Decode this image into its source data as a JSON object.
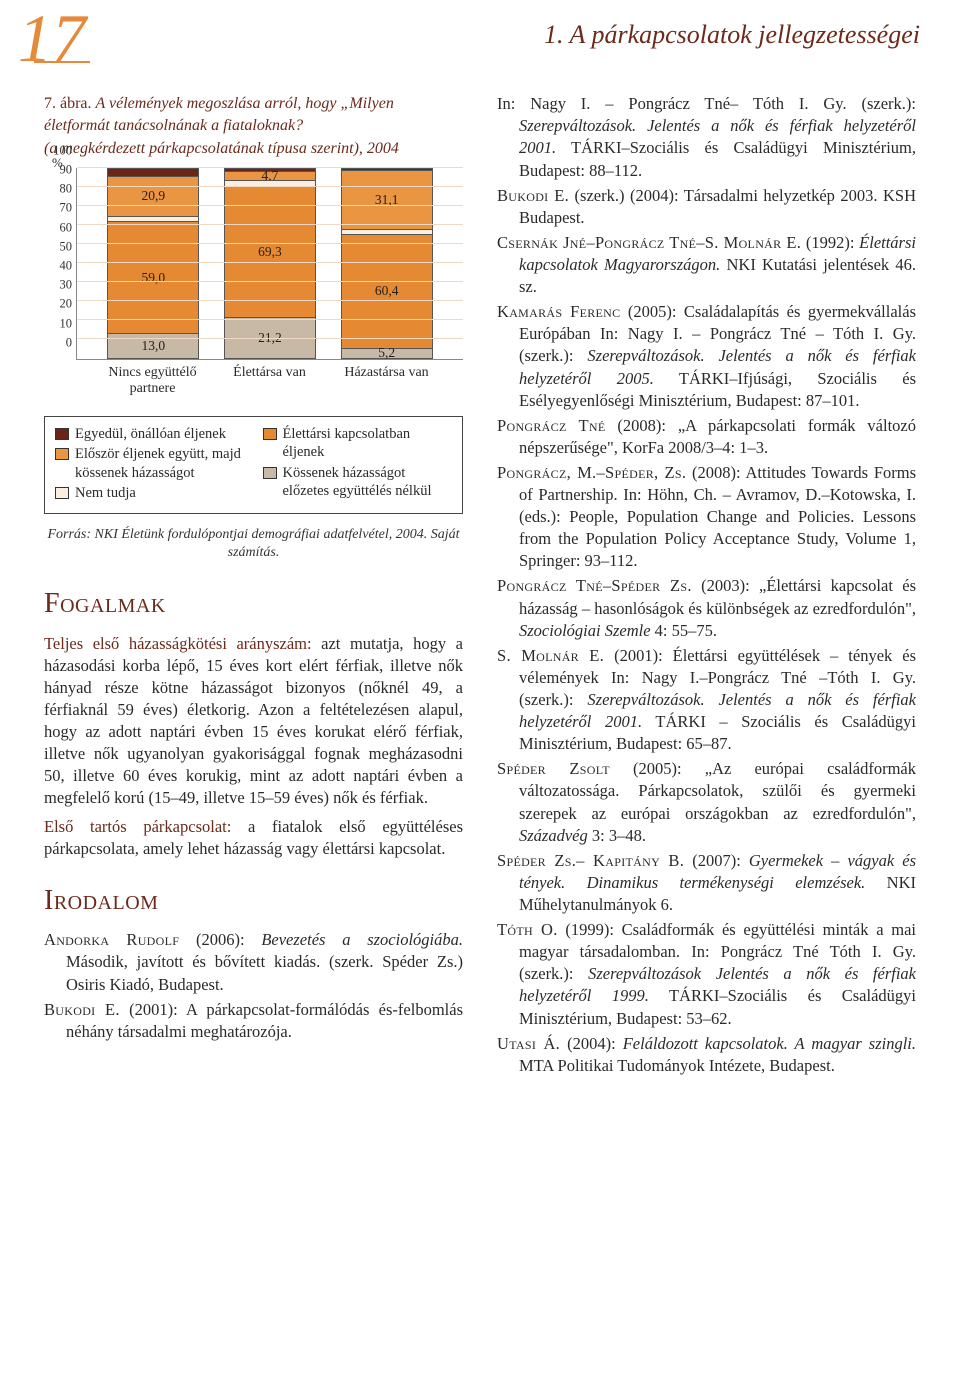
{
  "page_number": "17",
  "chapter_title": "1. A párkapcsolatok jellegzetességei",
  "figure": {
    "label": "7. ábra.",
    "title_main": "A vélemények megoszlása arról, hogy „Milyen életformát tanácsolnának a fiataloknak?",
    "title_sub": "(a megkérdezett párkapcsolatának típusa szerint), 2004",
    "source": "Forrás: NKI Életünk fordulópontjai demográfiai adatfelvétel, 2004. Saját számítás."
  },
  "chart": {
    "type": "stacked-bar",
    "y_label": "%",
    "y_ticks": [
      "0",
      "10",
      "20",
      "30",
      "40",
      "50",
      "60",
      "70",
      "80",
      "90",
      "100"
    ],
    "ylim": [
      0,
      100
    ],
    "background_color": "#ffffff",
    "grid_color": "#f0d9c4",
    "bar_border": "#555555",
    "categories": [
      {
        "label": "Nincs együttélő partnere",
        "segments": [
          {
            "key": "egyedul",
            "value": 4.0,
            "show": ""
          },
          {
            "key": "eloszor",
            "value": 20.9,
            "show": "20,9"
          },
          {
            "key": "nemtud",
            "value": 3.1,
            "show": ""
          },
          {
            "key": "elettarsi",
            "value": 59.0,
            "show": "59,0"
          },
          {
            "key": "kossenek",
            "value": 13.0,
            "show": "13,0"
          }
        ]
      },
      {
        "label": "Élettársa van",
        "segments": [
          {
            "key": "egyedul",
            "value": 1.5,
            "show": ""
          },
          {
            "key": "eloszor",
            "value": 4.7,
            "show": "4,7"
          },
          {
            "key": "nemtud",
            "value": 3.3,
            "show": ""
          },
          {
            "key": "elettarsi",
            "value": 69.3,
            "show": "69,3"
          },
          {
            "key": "kossenek",
            "value": 21.2,
            "show": "21,2"
          }
        ]
      },
      {
        "label": "Házastársa van",
        "segments": [
          {
            "key": "egyedul",
            "value": 1.0,
            "show": ""
          },
          {
            "key": "eloszor",
            "value": 31.1,
            "show": "31,1"
          },
          {
            "key": "nemtud",
            "value": 2.3,
            "show": ""
          },
          {
            "key": "elettarsi",
            "value": 60.4,
            "show": "60,4"
          },
          {
            "key": "kossenek",
            "value": 5.2,
            "show": "5,2"
          }
        ]
      }
    ],
    "series_colors": {
      "egyedul": "#6b2416",
      "eloszor": "#e99542",
      "nemtud": "#fceedf",
      "elettarsi": "#e58a33",
      "kossenek": "#c8b8a6"
    },
    "legend_left": [
      {
        "key": "egyedul",
        "text": "Egyedül, önállóan éljenek"
      },
      {
        "key": "eloszor",
        "text": "Először éljenek együtt, majd kössenek házasságot"
      },
      {
        "key": "nemtud",
        "text": "Nem tudja"
      }
    ],
    "legend_right": [
      {
        "key": "elettarsi",
        "text": "Élettársi kapcsolatban éljenek"
      },
      {
        "key": "kossenek",
        "text": "Kössenek házasságot előzetes együttélés nélkül"
      }
    ]
  },
  "sections": {
    "fogalmak_h": "Fogalmak",
    "irodalom_h": "Irodalom"
  },
  "fogalmak": [
    {
      "term": "Teljes első házasságkötési arányszám:",
      "body": " azt mutatja, hogy a házasodási korba lépő, 15 éves kort elért férfiak, illetve nők hányad része kötne házasságot bizonyos (nőknél 49, a férfiaknál 59 éves) életkorig. Azon a feltételezésen alapul, hogy az adott naptári évben 15 éves korukat elérő férfiak, illetve nők ugyanolyan gyakorisággal fognak megházasodni 50, illetve 60 éves korukig, mint az adott naptári évben a megfelelő korú (15–49, illetve 15–59 éves) nők és férfiak."
    },
    {
      "term": "Első tartós párkapcsolat:",
      "body": " a fiatalok első együttéléses párkapcsolata, amely lehet házasság vagy élettársi kapcsolat."
    }
  ],
  "irodalom_left": [
    {
      "auth": "Andorka Rudolf",
      "rest": " (2006): ",
      "ital": "Bevezetés a szociológiába.",
      "tail": " Második, javított és bővített kiadás. (szerk. Spéder Zs.) Osiris Kiadó, Budapest."
    },
    {
      "auth": "Bukodi E.",
      "rest": " (2001): A párkapcsolat-formálódás és-felbomlás néhány társadalmi meghatározója.",
      "ital": "",
      "tail": ""
    }
  ],
  "irodalom_right": [
    "In: Nagy I. – Pongrácz Tné– Tóth I. Gy. (szerk.): <span class=\"ital\">Szerepváltozások. Jelentés a nők és férfiak helyzetéről 2001.</span> TÁRKI–Szociális és Családügyi Minisztérium, Budapest: 88–112.",
    "<span class=\"sc\">Bukodi E.</span> (szerk.) (2004): Társadalmi helyzetkép 2003. KSH Budapest.",
    "<span class=\"sc\">Csernák Jné–Pongrácz Tné–S. Molnár E.</span> (1992): <span class=\"ital\">Élettársi kapcsolatok Magyarországon.</span> NKI Kutatási jelentések 46. sz.",
    "<span class=\"sc\">Kamarás Ferenc</span> (2005): Családalapítás és gyermekvállalás Európában In: Nagy I. – Pongrácz Tné – Tóth I. Gy. (szerk.): <span class=\"ital\">Szerepváltozások. Jelentés a nők és férfiak helyzetéről 2005.</span> TÁRKI–Ifjúsági, Szociális és Esélyegyenlőségi Minisztérium, Budapest: 87–101.",
    "<span class=\"sc\">Pongrácz Tné</span> (2008): „A párkapcsolati formák változó népszerűsége\", KorFa 2008/3–4: 1–3.",
    "<span class=\"sc\">Pongrácz, M.–Spéder, Zs.</span> (2008): Attitudes Towards Forms of Partnership. In: Höhn, Ch. – Avramov, D.–Kotowska, I. (eds.): People, Population Change and Policies. Lessons from the Population Policy Acceptance Study, Volume 1, Springer: 93–112.",
    "<span class=\"sc\">Pongrácz Tné–Spéder Zs.</span> (2003): „Élettársi kapcsolat és házasság – hasonlóságok és különbségek az ezredfordulón\", <span class=\"ital\">Szociológiai Szemle</span> 4: 55–75.",
    "<span class=\"sc\">S. Molnár E.</span> (2001): Élettársi együttélések – tények és vélemények In: Nagy I.–Pongrácz Tné –Tóth I. Gy. (szerk.): <span class=\"ital\">Szerepváltozások. Jelentés a nők és férfiak helyzetéről 2001.</span> TÁRKI – Szociális és Családügyi Minisztérium, Budapest: 65–87.",
    "<span class=\"sc\">Spéder Zsolt</span> (2005): „Az európai családformák változatossága. Párkapcsolatok, szülői és gyermeki szerepek az európai országokban az ezredfordulón\", <span class=\"ital\">Századvég</span> 3: 3–48.",
    "<span class=\"sc\">Spéder Zs.– Kapitány B.</span> (2007): <span class=\"ital\">Gyermekek – vágyak és tények. Dinamikus termékenységi elemzések.</span> NKI Műhelytanulmányok 6.",
    "<span class=\"sc\">Tóth O.</span> (1999): Családformák és együttélési minták a mai magyar társadalomban. In: Pongrácz Tné Tóth I. Gy. (szerk.): <span class=\"ital\">Szerepváltozások Jelentés a nők és férfiak helyzetéről 1999.</span> TÁRKI–Szociális és Családügyi Minisztérium, Budapest: 53–62.",
    "<span class=\"sc\">Utasi Á.</span> (2004): <span class=\"ital\">Feláldozott kapcsolatok. A magyar szingli.</span> MTA Politikai Tudományok Intézete, Budapest."
  ]
}
